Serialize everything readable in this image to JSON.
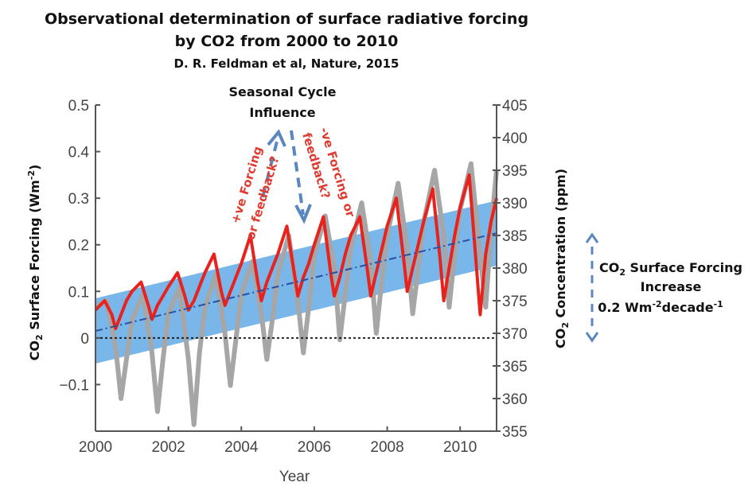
{
  "header": {
    "title_line1": "Observational determination of surface radiative forcing",
    "title_line2": "by CO2 from 2000 to 2010",
    "citation": "D. R. Feldman et al, Nature, 2015"
  },
  "annotations": {
    "seasonal_line1": "Seasonal Cycle",
    "seasonal_line2": "Influence",
    "pos_forcing_line1": "+ve Forcing",
    "pos_forcing_line2": "or feedback?",
    "neg_forcing_line1": "-ve Forcing or",
    "neg_forcing_line2": "feedback?",
    "increase_co2": "CO",
    "increase_co2_sub": "2",
    "increase_line1_rest": " Surface Forcing",
    "increase_line2": "Increase",
    "increase_line3_pre": "0.2 Wm",
    "increase_line3_sup1": "-2",
    "increase_line3_mid": "decade",
    "increase_line3_sup2": "-1"
  },
  "colors": {
    "forcing_series": "#e8231d",
    "concentration_series": "#a6a6a6",
    "trend_band": "#6aaee8",
    "trend_line": "#2a4fa0",
    "arrow": "#5b87c0",
    "annotation_red": "#e03c31"
  },
  "chart_data": {
    "type": "line",
    "xlabel": "Year",
    "ylabel_left_pre": "CO",
    "ylabel_left_sub": "2",
    "ylabel_left_mid": " Surface Forcing (Wm",
    "ylabel_left_sup": "-2",
    "ylabel_left_post": ")",
    "ylabel_right_pre": "CO",
    "ylabel_right_sub": "2",
    "ylabel_right_post": " Concentration  (ppm)",
    "xlim": [
      2000,
      2011
    ],
    "ylim_left": [
      -0.2,
      0.5
    ],
    "ylim_right": [
      355,
      405
    ],
    "x_ticks": [
      2000,
      2002,
      2004,
      2006,
      2008,
      2010
    ],
    "x_tick_labels": [
      "2000",
      "2002",
      "2004",
      "2006",
      "2008",
      "2010"
    ],
    "y_ticks_left": [
      -0.1,
      0,
      0.1,
      0.2,
      0.3,
      0.4,
      0.5
    ],
    "y_tick_labels_left": [
      "−0.1",
      "0",
      "0.1",
      "0.2",
      "0.3",
      "0.4",
      "0.5"
    ],
    "y_ticks_right": [
      355,
      360,
      365,
      370,
      375,
      380,
      385,
      390,
      395,
      400,
      405
    ],
    "y_tick_labels_right": [
      "355",
      "360",
      "365",
      "370",
      "375",
      "380",
      "385",
      "390",
      "395",
      "400",
      "405"
    ],
    "zero_line": {
      "y": 0,
      "style": "dotted"
    },
    "trend": {
      "start": [
        2000,
        0.015
      ],
      "end": [
        2011,
        0.225
      ],
      "band_halfwidth": 0.07
    },
    "series": [
      {
        "name": "CO2 surface forcing",
        "axis": "left",
        "x": [
          2000.0,
          2000.25,
          2000.45,
          2000.55,
          2000.7,
          2000.85,
          2001.0,
          2001.25,
          2001.45,
          2001.55,
          2001.7,
          2001.85,
          2002.0,
          2002.25,
          2002.45,
          2002.55,
          2002.7,
          2002.85,
          2003.0,
          2003.25,
          2003.45,
          2003.55,
          2003.7,
          2003.85,
          2004.0,
          2004.25,
          2004.45,
          2004.55,
          2004.7,
          2004.85,
          2005.0,
          2005.25,
          2005.45,
          2005.55,
          2005.7,
          2005.85,
          2006.0,
          2006.25,
          2006.45,
          2006.55,
          2006.7,
          2006.85,
          2007.0,
          2007.25,
          2007.45,
          2007.55,
          2007.7,
          2007.85,
          2008.0,
          2008.25,
          2008.45,
          2008.55,
          2008.7,
          2008.85,
          2009.0,
          2009.25,
          2009.45,
          2009.55,
          2009.7,
          2009.85,
          2010.0,
          2010.25,
          2010.45,
          2010.55,
          2010.7,
          2010.85,
          2011.0
        ],
        "y": [
          0.06,
          0.08,
          0.05,
          0.02,
          0.05,
          0.08,
          0.1,
          0.12,
          0.07,
          0.04,
          0.07,
          0.09,
          0.11,
          0.14,
          0.09,
          0.06,
          0.08,
          0.11,
          0.14,
          0.18,
          0.1,
          0.07,
          0.1,
          0.13,
          0.16,
          0.22,
          0.12,
          0.08,
          0.12,
          0.15,
          0.18,
          0.24,
          0.14,
          0.09,
          0.13,
          0.16,
          0.2,
          0.26,
          0.14,
          0.09,
          0.13,
          0.18,
          0.22,
          0.26,
          0.15,
          0.09,
          0.14,
          0.19,
          0.24,
          0.3,
          0.17,
          0.1,
          0.15,
          0.2,
          0.25,
          0.32,
          0.17,
          0.08,
          0.15,
          0.22,
          0.28,
          0.35,
          0.15,
          0.05,
          0.18,
          0.25,
          0.3
        ]
      },
      {
        "name": "CO2 concentration",
        "axis": "right",
        "x": [
          2000.0,
          2000.3,
          2000.55,
          2000.7,
          2000.85,
          2001.0,
          2001.3,
          2001.55,
          2001.7,
          2001.85,
          2002.0,
          2002.3,
          2002.55,
          2002.7,
          2002.85,
          2003.0,
          2003.3,
          2003.55,
          2003.7,
          2003.85,
          2004.0,
          2004.3,
          2004.55,
          2004.7,
          2004.85,
          2005.0,
          2005.3,
          2005.55,
          2005.7,
          2005.85,
          2006.0,
          2006.3,
          2006.55,
          2006.7,
          2006.85,
          2007.0,
          2007.3,
          2007.55,
          2007.7,
          2007.85,
          2008.0,
          2008.3,
          2008.55,
          2008.7,
          2008.85,
          2009.0,
          2009.3,
          2009.55,
          2009.7,
          2009.85,
          2010.0,
          2010.3,
          2010.55,
          2010.7,
          2010.85,
          2011.0
        ],
        "y": [
          374,
          375,
          368,
          360,
          366,
          372,
          376,
          367,
          358,
          366,
          373,
          377,
          366,
          356,
          367,
          374,
          379,
          370,
          362,
          369,
          376,
          381,
          373,
          366,
          372,
          379,
          385,
          375,
          367,
          374,
          382,
          388,
          380,
          369,
          376,
          383,
          390,
          381,
          370,
          378,
          385,
          393,
          383,
          373,
          380,
          387,
          395,
          385,
          374,
          382,
          389,
          396,
          382,
          374,
          386,
          395
        ]
      }
    ]
  }
}
